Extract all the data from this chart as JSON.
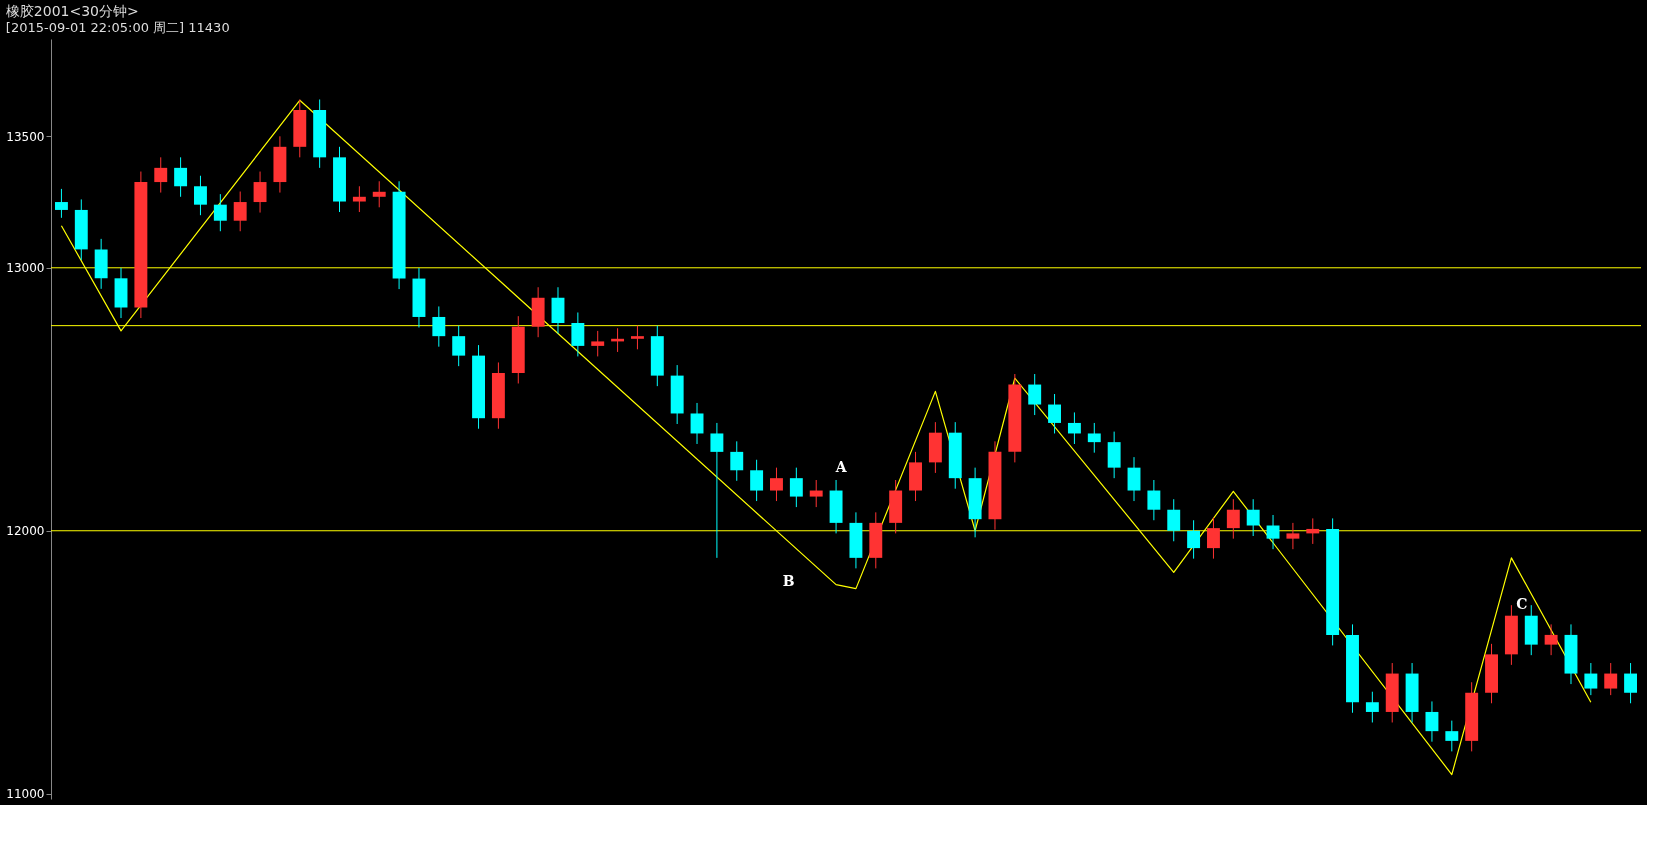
{
  "chart_data": {
    "type": "candlestick",
    "title": "橡胶2001<30分钟>",
    "subtitle": "[2015-09-01  22:05:00 周二]     11430",
    "categories": [
      null,
      null,
      null,
      null,
      null,
      null,
      null,
      null,
      null,
      null,
      null,
      null,
      null,
      null,
      null,
      null,
      null,
      null,
      null,
      null,
      null,
      null,
      null,
      null,
      null,
      null,
      null,
      null,
      null,
      null,
      null,
      null,
      null,
      null,
      null,
      null,
      null,
      null,
      null,
      null,
      null,
      null,
      null,
      null,
      null,
      null,
      null,
      null,
      null,
      null,
      null,
      null,
      null,
      null,
      null,
      null,
      null,
      null,
      null,
      null,
      null,
      null,
      null,
      null,
      null,
      null,
      null,
      null,
      null,
      null,
      null,
      null,
      null,
      null,
      null,
      null,
      null,
      null,
      null,
      null
    ],
    "ohlc": [
      [
        13250,
        13300,
        13190,
        13220
      ],
      [
        13220,
        13260,
        13030,
        13070
      ],
      [
        13070,
        13110,
        12920,
        12960
      ],
      [
        12960,
        13000,
        12809,
        12849
      ],
      [
        12849,
        13366,
        12809,
        13326
      ],
      [
        13326,
        13420,
        13286,
        13380
      ],
      [
        13380,
        13420,
        13270,
        13310
      ],
      [
        13310,
        13350,
        13200,
        13240
      ],
      [
        13240,
        13280,
        13139,
        13179
      ],
      [
        13179,
        13290,
        13139,
        13250
      ],
      [
        13250,
        13366,
        13210,
        13326
      ],
      [
        13326,
        13500,
        13286,
        13460
      ],
      [
        13460,
        13640,
        13420,
        13600
      ],
      [
        13600,
        13640,
        13380,
        13420
      ],
      [
        13420,
        13460,
        13212,
        13252
      ],
      [
        13252,
        13310,
        13212,
        13270
      ],
      [
        13270,
        13329,
        13230,
        13289
      ],
      [
        13289,
        13329,
        12919,
        12959
      ],
      [
        12959,
        12999,
        12773,
        12813
      ],
      [
        12813,
        12853,
        12700,
        12740
      ],
      [
        12740,
        12780,
        12626,
        12666
      ],
      [
        12666,
        12706,
        12388,
        12428
      ],
      [
        12428,
        12640,
        12388,
        12600
      ],
      [
        12600,
        12816,
        12560,
        12776
      ],
      [
        12776,
        12926,
        12736,
        12886
      ],
      [
        12886,
        12926,
        12750,
        12790
      ],
      [
        12790,
        12830,
        12663,
        12703
      ],
      [
        12703,
        12760,
        12663,
        12720
      ],
      [
        12720,
        12770,
        12680,
        12730
      ],
      [
        12730,
        12780,
        12690,
        12740
      ],
      [
        12740,
        12780,
        12550,
        12590
      ],
      [
        12590,
        12630,
        12406,
        12446
      ],
      [
        12446,
        12486,
        12330,
        12370
      ],
      [
        12370,
        12410,
        11897,
        12300
      ],
      [
        12300,
        12340,
        12190,
        12230
      ],
      [
        12230,
        12270,
        12113,
        12153
      ],
      [
        12153,
        12240,
        12113,
        12200
      ],
      [
        12200,
        12240,
        12090,
        12130
      ],
      [
        12130,
        12193,
        12090,
        12153
      ],
      [
        12153,
        12193,
        11990,
        12030
      ],
      [
        12030,
        12070,
        11857,
        11897
      ],
      [
        11897,
        12070,
        11857,
        12030
      ],
      [
        12030,
        12193,
        11990,
        12153
      ],
      [
        12153,
        12300,
        12113,
        12260
      ],
      [
        12260,
        12413,
        12220,
        12373
      ],
      [
        12373,
        12413,
        12160,
        12200
      ],
      [
        12200,
        12240,
        11975,
        12044
      ],
      [
        12044,
        12340,
        12004,
        12300
      ],
      [
        12300,
        12596,
        12260,
        12556
      ],
      [
        12556,
        12596,
        12440,
        12480
      ],
      [
        12480,
        12520,
        12370,
        12410
      ],
      [
        12410,
        12450,
        12330,
        12370
      ],
      [
        12370,
        12410,
        12297,
        12337
      ],
      [
        12337,
        12377,
        12200,
        12240
      ],
      [
        12240,
        12280,
        12113,
        12153
      ],
      [
        12153,
        12193,
        12040,
        12080
      ],
      [
        12080,
        12120,
        11960,
        12000
      ],
      [
        12000,
        12040,
        11894,
        11934
      ],
      [
        11934,
        12050,
        11894,
        12010
      ],
      [
        12010,
        12120,
        11970,
        12080
      ],
      [
        12080,
        12120,
        11980,
        12020
      ],
      [
        12020,
        12060,
        11930,
        11970
      ],
      [
        11970,
        12030,
        11930,
        11990
      ],
      [
        11990,
        12047,
        11950,
        12007
      ],
      [
        12007,
        12047,
        11564,
        11604
      ],
      [
        11604,
        11644,
        11308,
        11348
      ],
      [
        11348,
        11388,
        11271,
        11311
      ],
      [
        11311,
        11497,
        11271,
        11457
      ],
      [
        11457,
        11497,
        11271,
        11311
      ],
      [
        11311,
        11351,
        11198,
        11238
      ],
      [
        11238,
        11278,
        11161,
        11201
      ],
      [
        11201,
        11424,
        11161,
        11384
      ],
      [
        11384,
        11570,
        11344,
        11530
      ],
      [
        11530,
        11717,
        11490,
        11677
      ],
      [
        11677,
        11717,
        11527,
        11567
      ],
      [
        11567,
        11644,
        11527,
        11604
      ],
      [
        11604,
        11644,
        11417,
        11457
      ],
      [
        11457,
        11497,
        11375,
        11400
      ],
      [
        11400,
        11497,
        11375,
        11457
      ],
      [
        11457,
        11497,
        11344,
        11384
      ]
    ],
    "series": [
      {
        "type": "line",
        "color": "#ffff00",
        "values": [
          13160,
          null,
          null,
          12760,
          null,
          null,
          null,
          null,
          null,
          null,
          null,
          null,
          13637,
          null,
          null,
          null,
          null,
          null,
          null,
          null,
          null,
          null,
          null,
          null,
          null,
          null,
          null,
          null,
          null,
          null,
          null,
          null,
          null,
          null,
          null,
          null,
          null,
          null,
          null,
          11795,
          11780,
          null,
          null,
          null,
          12530,
          null,
          12000,
          null,
          12580,
          null,
          null,
          null,
          null,
          null,
          null,
          null,
          11842,
          null,
          null,
          12150,
          null,
          null,
          null,
          null,
          null,
          null,
          null,
          null,
          null,
          null,
          11073,
          null,
          null,
          11897,
          null,
          null,
          null,
          11348,
          null,
          null
        ]
      }
    ],
    "ylim": [
      10980,
      13870
    ],
    "yticks": [
      11000,
      12000,
      13000,
      13500
    ],
    "ref_lines": [
      {
        "axis": "y",
        "value": 13000,
        "color": "#ffff00"
      },
      {
        "axis": "y",
        "value": 12000,
        "color": "#ffff00"
      },
      {
        "axis": "y",
        "value": 12780,
        "color": "#ffff00"
      }
    ],
    "annotations": [
      "A",
      "B",
      "C"
    ],
    "tick_labels": "y",
    "grid": false
  }
}
